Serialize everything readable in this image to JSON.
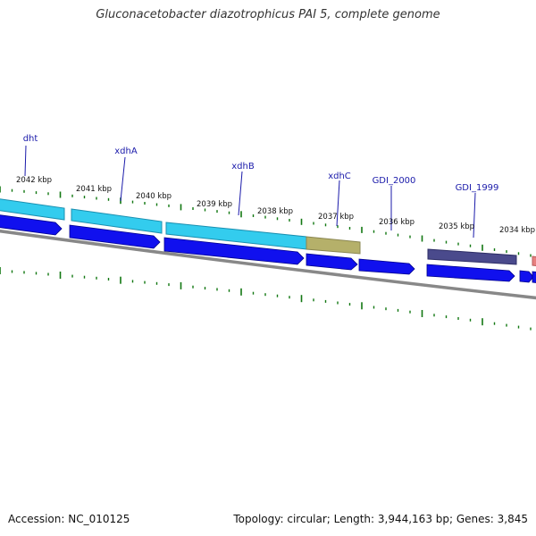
{
  "title": "Gluconacetobacter diazotrophicus PAI 5, complete genome",
  "footer": {
    "accession": "Accession: NC_010125",
    "topology": "Topology: circular; Length: 3,944,163 bp; Genes: 3,845"
  },
  "colors": {
    "forward_cds": "#33ccee",
    "reverse_cds": "#1010ee",
    "olive_feature": "#b5b06a",
    "purple_feature": "#4a4a8c",
    "red_feature": "#e87f7f",
    "tick": "#117711",
    "backbone": "#888888",
    "gene_label": "#1a1aaa"
  },
  "scale_labels": [
    "2042 kbp",
    "2041 kbp",
    "2040 kbp",
    "2039 kbp",
    "2038 kbp",
    "2037 kbp",
    "2036 kbp",
    "2035 kbp",
    "2034 kbp"
  ],
  "gene_labels": [
    "dht",
    "xdhA",
    "xdhB",
    "xdhC",
    "GDI_2000",
    "GDI_1999"
  ]
}
